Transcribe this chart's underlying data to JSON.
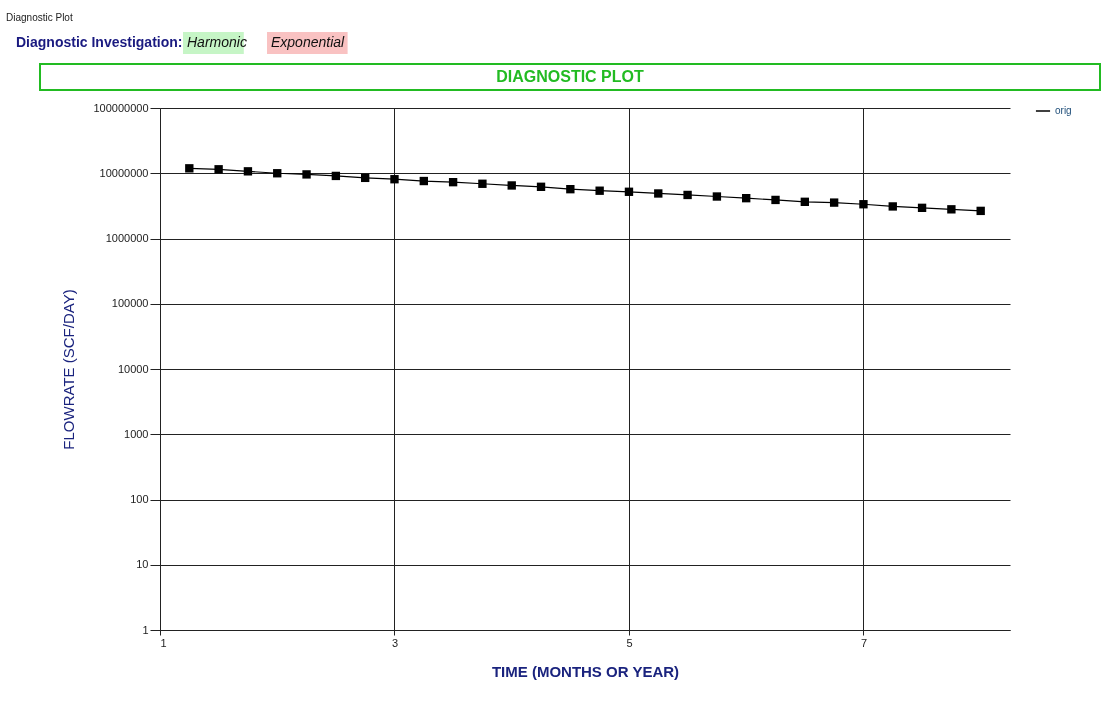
{
  "chart_data": {
    "type": "line",
    "title": "DIAGNOSTIC PLOT",
    "xlabel": "TIME (MONTHS OR YEAR)",
    "ylabel": "FLOWRATE (SCF/DAY)",
    "annotations": [
      "Diagnostic Plot",
      "Diagnostic Investigation:",
      "Harmonic",
      "Exponential"
    ],
    "x": [
      1.25,
      1.5,
      1.75,
      2,
      2.25,
      2.5,
      2.75,
      3,
      3.25,
      3.5,
      3.75,
      4,
      4.25,
      4.5,
      4.75,
      5,
      5.25,
      5.5,
      5.75,
      6,
      6.25,
      6.5,
      6.75,
      7,
      7.25,
      7.5,
      7.75,
      8
    ],
    "series": [
      {
        "name": "orig",
        "color": "#000000",
        "values": [
          11900000,
          11500000,
          10700000,
          10000000,
          9600000,
          9100000,
          8500000,
          8100000,
          7600000,
          7300000,
          6900000,
          6500000,
          6200000,
          5700000,
          5400000,
          5200000,
          4900000,
          4650000,
          4400000,
          4150000,
          3900000,
          3650000,
          3550000,
          3350000,
          3100000,
          2950000,
          2800000,
          2650000
        ]
      }
    ],
    "xlim": [
      1,
      8.25
    ],
    "xticks": [
      1,
      3,
      5,
      7
    ],
    "ylim": [
      1,
      100000000
    ],
    "yticks": [
      1,
      10,
      100,
      1000,
      10000,
      100000,
      1000000,
      10000000,
      100000000
    ],
    "log": "y",
    "grid": true,
    "legend": "top right",
    "marker": "square",
    "line_style": "solid"
  }
}
